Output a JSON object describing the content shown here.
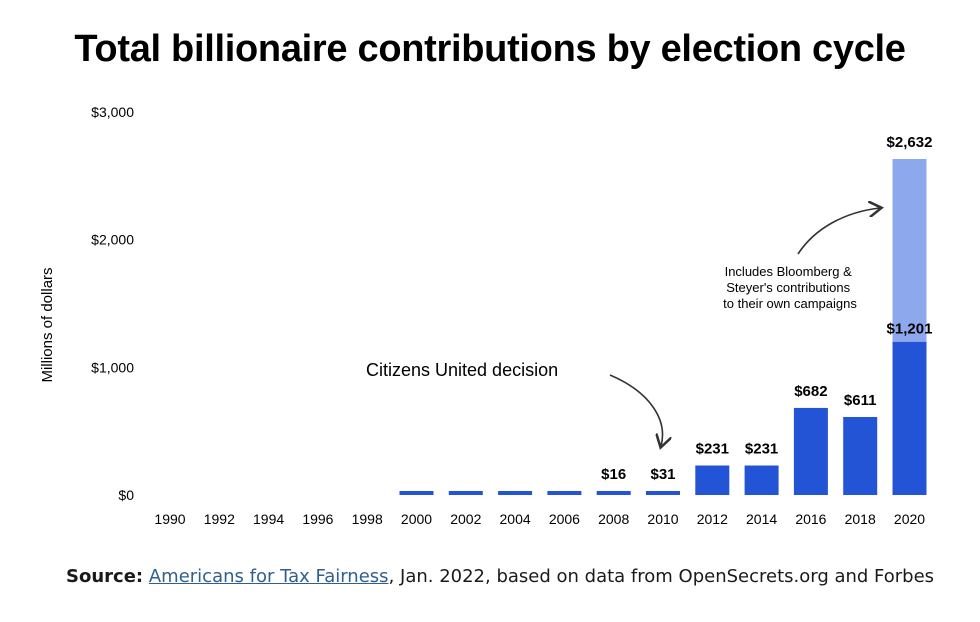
{
  "title": "Total billionaire contributions by election cycle",
  "chart_data": {
    "type": "bar",
    "title": "Total billionaire contributions by election cycle",
    "ylabel": "Millions of dollars",
    "xlabel": "",
    "ylim": [
      0,
      3000
    ],
    "y_ticks": [
      "$0",
      "$1,000",
      "$2,000",
      "$3,000"
    ],
    "y_tick_values": [
      0,
      1000,
      2000,
      3000
    ],
    "categories": [
      "1990",
      "1992",
      "1994",
      "1996",
      "1998",
      "2000",
      "2002",
      "2004",
      "2006",
      "2008",
      "2010",
      "2012",
      "2014",
      "2016",
      "2018",
      "2020"
    ],
    "series": [
      {
        "color": "#2354d6",
        "values": [
          0,
          0,
          0,
          0,
          0,
          16,
          16,
          16,
          16,
          16,
          31,
          231,
          231,
          682,
          611,
          1201
        ]
      },
      {
        "color": "#8ea8ee",
        "values": [
          0,
          0,
          0,
          0,
          0,
          0,
          0,
          0,
          0,
          0,
          0,
          0,
          0,
          0,
          0,
          1431
        ]
      }
    ],
    "data_labels": [
      {
        "category": "2008",
        "text": "$16"
      },
      {
        "category": "2010",
        "text": "$31"
      },
      {
        "category": "2012",
        "text": "$231"
      },
      {
        "category": "2014",
        "text": "$231"
      },
      {
        "category": "2016",
        "text": "$682"
      },
      {
        "category": "2018",
        "text": "$611"
      },
      {
        "category": "2020",
        "text": "$1,201"
      },
      {
        "category": "2020",
        "text": "$2,632"
      }
    ],
    "annotations": {
      "citizens_united": "Citizens United decision",
      "bloomberg": [
        "Includes Bloomberg &",
        "Steyer's contributions",
        "to their own campaigns"
      ]
    },
    "grid": false,
    "legend": "none"
  },
  "source": {
    "label": "Source:",
    "link_text": "Americans for Tax Fairness",
    "rest": ", Jan. 2022, based on data from OpenSecrets.org and Forbes"
  }
}
